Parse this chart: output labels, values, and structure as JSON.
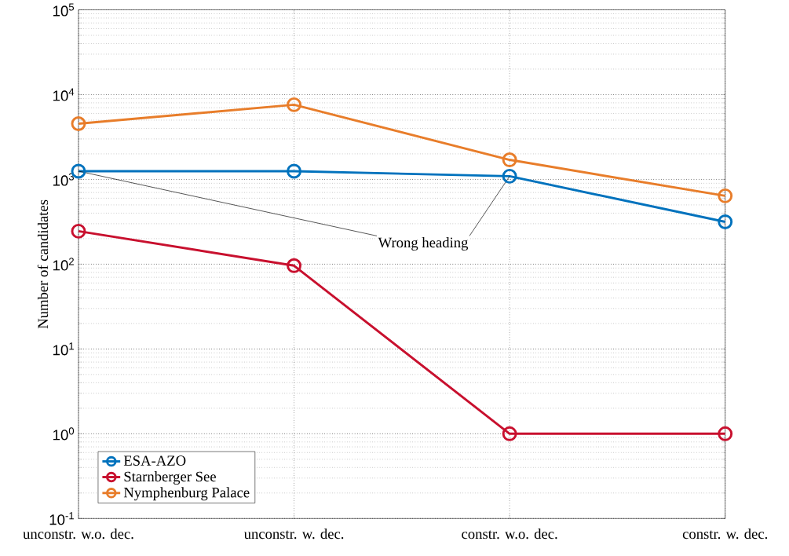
{
  "chart_data": {
    "type": "line",
    "ylabel": "Number of candidates",
    "categories": [
      "unconstr. w.o. dec.",
      "unconstr. w. dec.",
      "constr. w.o. dec.",
      "constr. w. dec."
    ],
    "series": [
      {
        "name": "ESA-AZO",
        "color": "#0072bd",
        "values": [
          1250,
          1250,
          1090,
          316
        ]
      },
      {
        "name": "Starnberger See",
        "color": "#c8102e",
        "values": [
          245,
          96,
          1,
          1
        ]
      },
      {
        "name": "Nymphenburg Palace",
        "color": "#e87d2a",
        "values": [
          4540,
          7600,
          1700,
          640
        ]
      }
    ],
    "log": true,
    "ylim": [
      0.1,
      100000
    ],
    "yticks": [
      {
        "value": 0.1,
        "label": "10$^{-1}$"
      },
      {
        "value": 1,
        "label": "10$^{0}$"
      },
      {
        "value": 10,
        "label": "10$^{1}$"
      },
      {
        "value": 100,
        "label": "10$^{2}$"
      },
      {
        "value": 1000,
        "label": "10$^{3}$"
      },
      {
        "value": 10000,
        "label": "10$^{4}$"
      },
      {
        "value": 100000,
        "label": "10$^{5}$"
      }
    ],
    "grid": true,
    "legend": "bottom left",
    "marker": "circle",
    "line_style": "solid",
    "annotations": [
      {
        "text": "Wrong heading",
        "x": "constr. w.o. dec.",
        "y": 1090
      }
    ]
  }
}
